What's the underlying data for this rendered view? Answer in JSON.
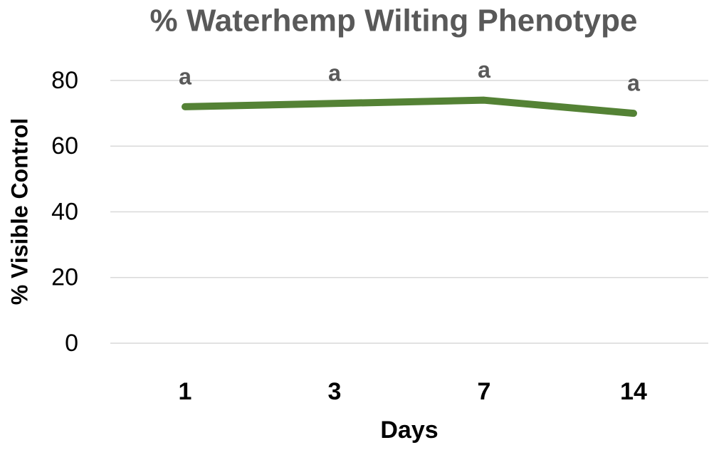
{
  "chart_data": {
    "type": "line",
    "title": "% Waterhemp Wilting Phenotype",
    "x_label": "Days",
    "y_label": "% Visible Control",
    "categories": [
      "1",
      "3",
      "7",
      "14"
    ],
    "series": [
      {
        "name": "% Visible Control",
        "color": "#548235",
        "values": [
          72,
          73,
          74,
          70
        ]
      }
    ],
    "annotations": [
      "a",
      "a",
      "a",
      "a"
    ],
    "ylim": [
      0,
      80
    ],
    "yticks": [
      0,
      20,
      40,
      60,
      80
    ],
    "grid": true,
    "legend": false
  }
}
